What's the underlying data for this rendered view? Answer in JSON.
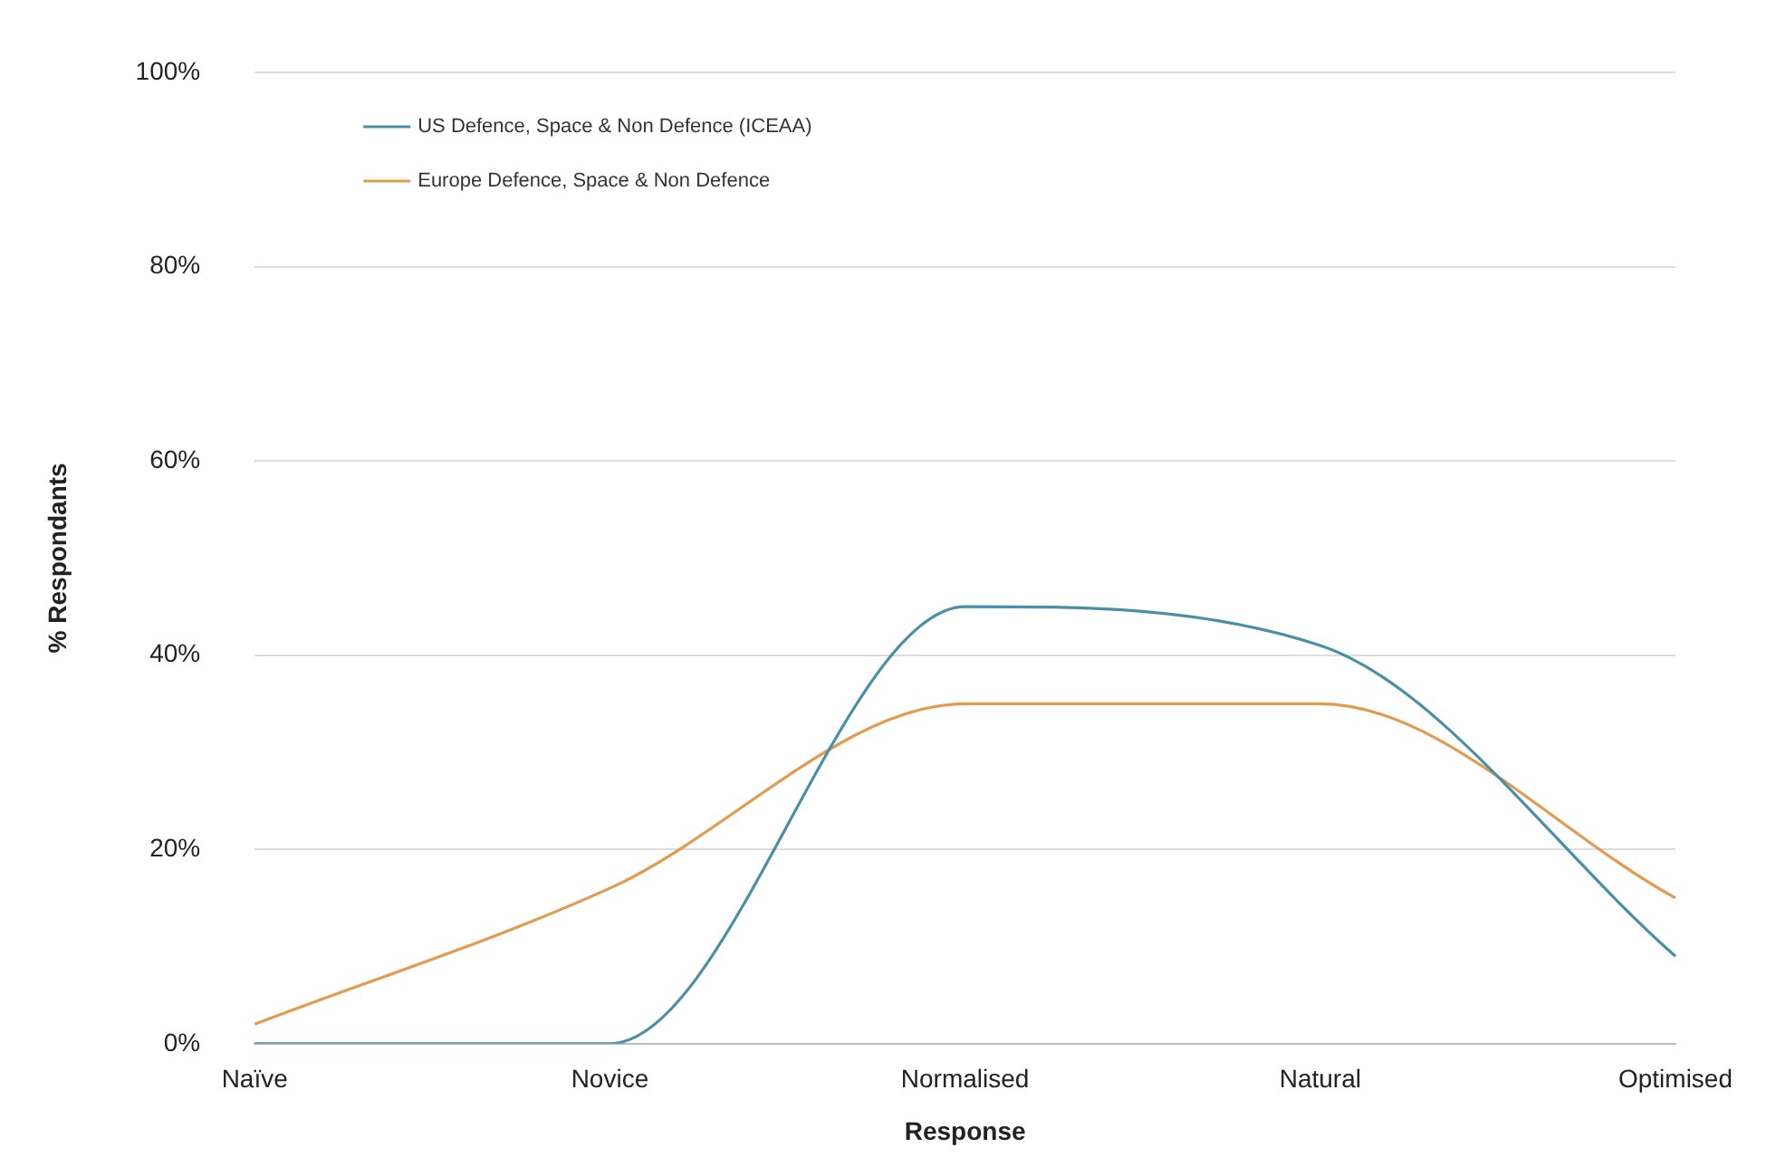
{
  "chart_data": {
    "type": "line",
    "xlabel": "Response",
    "ylabel": "% Respondants",
    "categories": [
      "Naïve",
      "Novice",
      "Normalised",
      "Natural",
      "Optimised"
    ],
    "series": [
      {
        "name": "US Defence, Space & Non Defence (ICEAA)",
        "color": "#4a8fa8",
        "values": [
          0,
          0,
          45,
          41,
          9
        ]
      },
      {
        "name": "Europe Defence, Space & Non Defence",
        "color": "#e39b4f",
        "values": [
          2,
          16,
          35,
          35,
          15
        ]
      }
    ],
    "ylim": [
      0,
      100
    ],
    "yticks": [
      {
        "value": 0,
        "label": "0%"
      },
      {
        "value": 20,
        "label": "20%"
      },
      {
        "value": 40,
        "label": "40%"
      },
      {
        "value": 60,
        "label": "60%"
      },
      {
        "value": 80,
        "label": "80%"
      },
      {
        "value": 100,
        "label": "100%"
      }
    ],
    "grid": "y",
    "legend": "top left",
    "marker": "none",
    "line_style": "solid"
  }
}
